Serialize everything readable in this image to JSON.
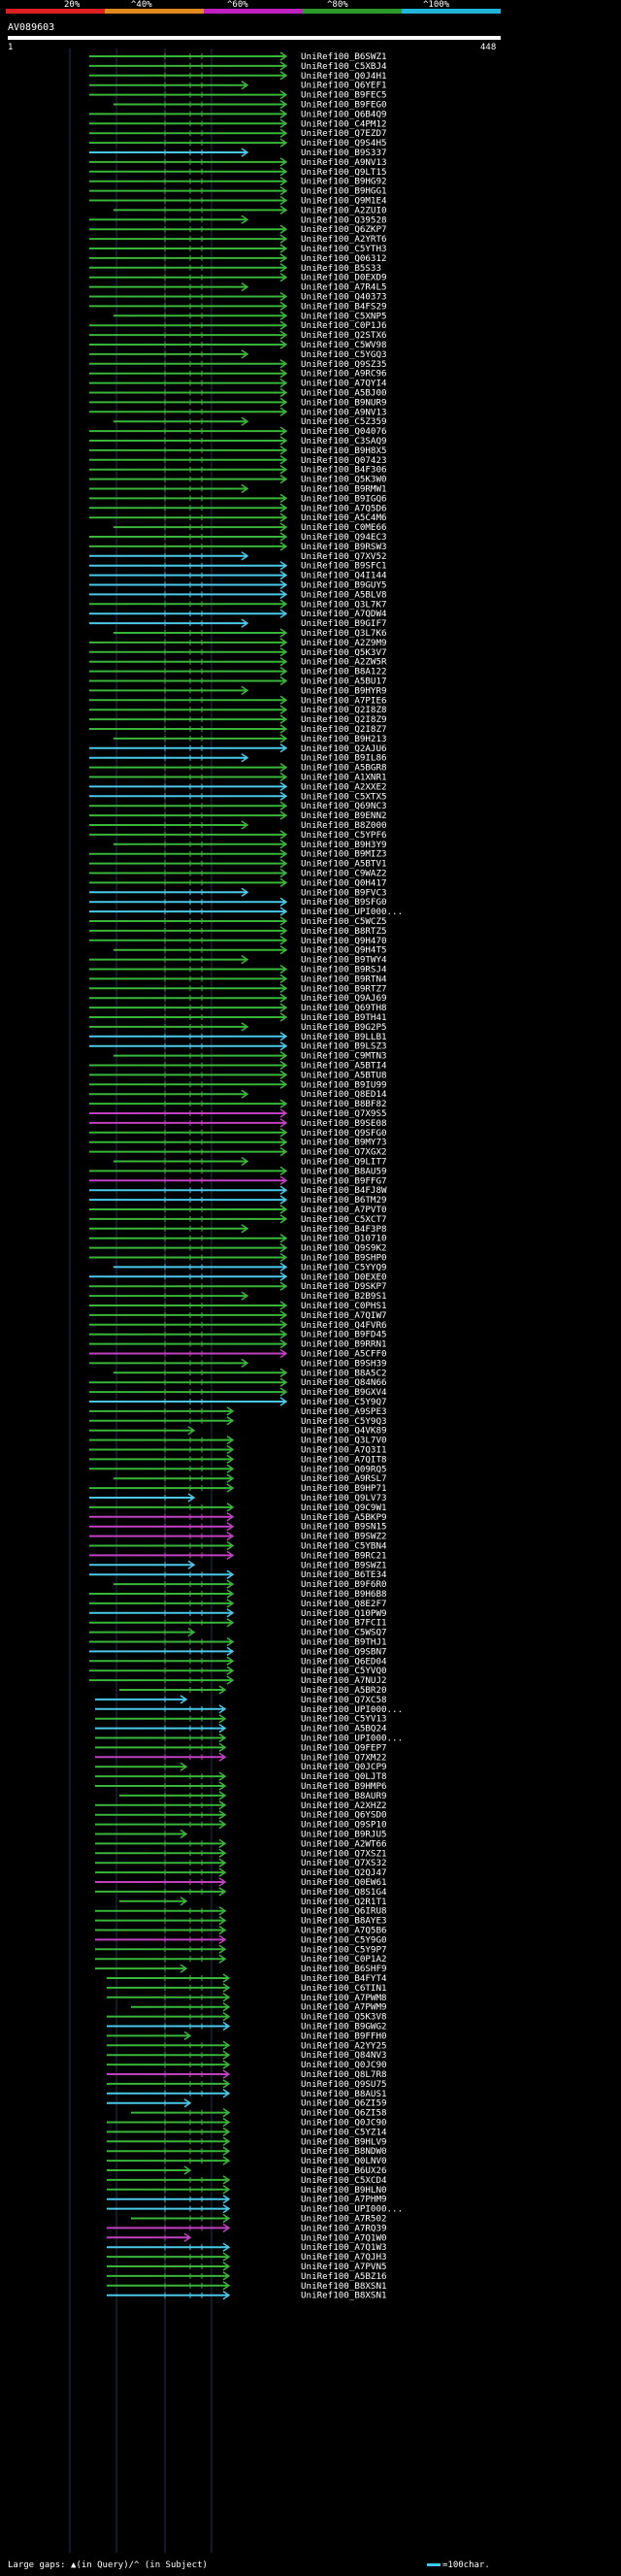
{
  "scale": {
    "ticks": [
      "20%",
      "^40%",
      "^60%",
      "^80%",
      "^100%"
    ],
    "colors": [
      "#e02020",
      "#e08a1c",
      "#c020c0",
      "#2a9a2a",
      "#20b4d8"
    ]
  },
  "query": {
    "id": "AV089603",
    "start": "1",
    "end": "448"
  },
  "colors": {
    "green": "#39b53a",
    "cyan": "#4ac8e8",
    "magenta": "#c040c0",
    "grid": "#223355"
  },
  "hits": [
    "UniRef100_B6SWZ1",
    "UniRef100_C5XBJ4",
    "UniRef100_Q0J4H1",
    "UniRef100_Q6YEF1",
    "UniRef100_B9FEC5",
    "UniRef100_B9FEG0",
    "UniRef100_Q6B4Q9",
    "UniRef100_C4PM12",
    "UniRef100_Q7EZD7",
    "UniRef100_Q9S4H5",
    "UniRef100_B9S337",
    "UniRef100_A9NV13",
    "UniRef100_Q9LT15",
    "UniRef100_B9HG92",
    "UniRef100_B9HGG1",
    "UniRef100_Q9M1E4",
    "UniRef100_A2ZUI0",
    "UniRef100_Q39528",
    "UniRef100_Q6ZKP7",
    "UniRef100_A2YRT6",
    "UniRef100_C5YTH3",
    "UniRef100_Q06312",
    "UniRef100_B5S33",
    "UniRef100_D0EXD9",
    "UniRef100_A7R4L5",
    "UniRef100_Q40373",
    "UniRef100_B4FS29",
    "UniRef100_C5XNP5",
    "UniRef100_C0P1J6",
    "UniRef100_Q2STX6",
    "UniRef100_C5WV98",
    "UniRef100_C5YGQ3",
    "UniRef100_Q9SZ35",
    "UniRef100_A9RC96",
    "UniRef100_A7QYI4",
    "UniRef100_A5BJ00",
    "UniRef100_B9NUR9",
    "UniRef100_A9NV13",
    "UniRef100_C5Z359",
    "UniRef100_Q04076",
    "UniRef100_C3SAQ9",
    "UniRef100_B9H8X5",
    "UniRef100_Q07423",
    "UniRef100_B4F306",
    "UniRef100_Q5K3W0",
    "UniRef100_B9RMW1",
    "UniRef100_B9IGQ6",
    "UniRef100_A7Q5D6",
    "UniRef100_A5C4M6",
    "UniRef100_C0ME66",
    "UniRef100_Q94EC3",
    "UniRef100_B9RSW3",
    "UniRef100_Q7XV52",
    "UniRef100_B9SFC1",
    "UniRef100_Q4I144",
    "UniRef100_B9GUY5",
    "UniRef100_A5BLV8",
    "UniRef100_Q3L7K7",
    "UniRef100_A7QDW4",
    "UniRef100_B9GIF7",
    "UniRef100_Q3L7K6",
    "UniRef100_A2Z9M9",
    "UniRef100_Q5K3V7",
    "UniRef100_A2ZW5R",
    "UniRef100_B8A122",
    "UniRef100_A5BU17",
    "UniRef100_B9HYR9",
    "UniRef100_A7PIE6",
    "UniRef100_Q2I8Z8",
    "UniRef100_Q2I8Z9",
    "UniRef100_Q2I8Z7",
    "UniRef100_B9H213",
    "UniRef100_Q2AJU6",
    "UniRef100_B9IL86",
    "UniRef100_A5BGR8",
    "UniRef100_A1XNR1",
    "UniRef100_A2XXE2",
    "UniRef100_C5XTX5",
    "UniRef100_Q69NC3",
    "UniRef100_B9ENN2",
    "UniRef100_B8Z000",
    "UniRef100_C5YPF6",
    "UniRef100_B9H3Y9",
    "UniRef100_B9MIZ3",
    "UniRef100_A5BTV1",
    "UniRef100_C9WAZ2",
    "UniRef100_Q0H417",
    "UniRef100_B9FVC3",
    "UniRef100_B9SFG0",
    "UniRef100_UPI000...",
    "UniRef100_C5WCZ5",
    "UniRef100_B8RTZ5",
    "UniRef100_Q9H470",
    "UniRef100_Q9H4T5",
    "UniRef100_B9TWY4",
    "UniRef100_B9RSJ4",
    "UniRef100_B9RTN4",
    "UniRef100_B9RTZ7",
    "UniRef100_Q9AJ69",
    "UniRef100_Q69TH8",
    "UniRef100_B9TH41",
    "UniRef100_B9G2P5",
    "UniRef100_B9LLB1",
    "UniRef100_B9LSZ3",
    "UniRef100_C9MTN3",
    "UniRef100_A5BTI4",
    "UniRef100_A5BTU8",
    "UniRef100_B9IU99",
    "UniRef100_Q8ED14",
    "UniRef100_B8BF82",
    "UniRef100_Q7X9S5",
    "UniRef100_B9SE08",
    "UniRef100_Q9SFG0",
    "UniRef100_B9MY73",
    "UniRef100_Q7XGX2",
    "UniRef100_Q9LIT7",
    "UniRef100_B8AU59",
    "UniRef100_B9FFG7",
    "UniRef100_B4FJ8W",
    "UniRef100_B6TM29",
    "UniRef100_A7PVT0",
    "UniRef100_C5XCT7",
    "UniRef100_B4F3P8",
    "UniRef100_Q10710",
    "UniRef100_Q9S9K2",
    "UniRef100_B9SHP0",
    "UniRef100_C5YYQ9",
    "UniRef100_D0EXE0",
    "UniRef100_D9SKP7",
    "UniRef100_B2B9S1",
    "UniRef100_C0PHS1",
    "UniRef100_A7QIW7",
    "UniRef100_Q4FVR6",
    "UniRef100_B9FD45",
    "UniRef100_B9RRN1",
    "UniRef100_A5CFF0",
    "UniRef100_B9SH39",
    "UniRef100_B8A5C2",
    "UniRef100_Q84N66",
    "UniRef100_B9GXV4",
    "UniRef100_C5Y9Q7",
    "UniRef100_A9SPE3",
    "UniRef100_C5Y9Q3",
    "UniRef100_Q4VK89",
    "UniRef100_Q3L7V0",
    "UniRef100_A7Q3I1",
    "UniRef100_A7QIT8",
    "UniRef100_Q09RQ5",
    "UniRef100_A9RSL7",
    "UniRef100_B9HP71",
    "UniRef100_Q9LV73",
    "UniRef100_Q9C9W1",
    "UniRef100_A5BKP9",
    "UniRef100_B9SN15",
    "UniRef100_B9SWZ2",
    "UniRef100_C5YBN4",
    "UniRef100_B9RC21",
    "UniRef100_B9SWZ1",
    "UniRef100_B6TE34",
    "UniRef100_B9F6R0",
    "UniRef100_B9H6B8",
    "UniRef100_Q8E2F7",
    "UniRef100_Q10PW9",
    "UniRef100_B7FCI1",
    "UniRef100_C5WSQ7",
    "UniRef100_B9THJ1",
    "UniRef100_Q9SBN7",
    "UniRef100_Q6ED04",
    "UniRef100_C5YVQ0",
    "UniRef100_A7NUJ2",
    "UniRef100_A5BR20",
    "UniRef100_Q7XC58",
    "UniRef100_UPI000...",
    "UniRef100_C5YV13",
    "UniRef100_A5BQ24",
    "UniRef100_UPI000...",
    "UniRef100_Q9FEP7",
    "UniRef100_Q7XM22",
    "UniRef100_Q0JCP9",
    "UniRef100_Q0LJT8",
    "UniRef100_B9HMP6",
    "UniRef100_B8AUR9",
    "UniRef100_A2XHZ2",
    "UniRef100_Q6YSD0",
    "UniRef100_Q9SP10",
    "UniRef100_B9RJU5",
    "UniRef100_A2WT66",
    "UniRef100_Q7XSZ1",
    "UniRef100_Q7XS32",
    "UniRef100_Q2QJ47",
    "UniRef100_Q0EW61",
    "UniRef100_Q8S1G4",
    "UniRef100_Q2R1T1",
    "UniRef100_Q6IRU8",
    "UniRef100_B8AYE3",
    "UniRef100_A7Q5B6",
    "UniRef100_C5Y9G0",
    "UniRef100_C5Y9P7",
    "UniRef100_C0P1A2",
    "UniRef100_B6SHF9",
    "UniRef100_B4FYT4",
    "UniRef100_C6TIN1",
    "UniRef100_A7PWM8",
    "UniRef100_A7PWM9",
    "UniRef100_Q5K3V8",
    "UniRef100_B9GWG2",
    "UniRef100_B9FFH0",
    "UniRef100_A2YY25",
    "UniRef100_Q84NV3",
    "UniRef100_Q0JC90",
    "UniRef100_Q8L7R8",
    "UniRef100_Q9SU75",
    "UniRef100_B8AUS1",
    "UniRef100_Q6ZI59",
    "UniRef100_Q6ZI58",
    "UniRef100_Q0JC90",
    "UniRef100_C5YZ14",
    "UniRef100_B9HLV9",
    "UniRef100_B8NDW0",
    "UniRef100_Q0LNV0",
    "UniRef100_B6UX26",
    "UniRef100_C5XCD4",
    "UniRef100_B9HLN0",
    "UniRef100_A7PHM9",
    "UniRef100_UPI000...",
    "UniRef100_A7R502",
    "UniRef100_A7RQ39",
    "UniRef100_A7Q1W0",
    "UniRef100_A7Q1W3",
    "UniRef100_A7QJH3",
    "UniRef100_A7PVN5",
    "UniRef100_A5BZ16",
    "UniRef100_B8XSN1",
    "UniRef100_B8XSN1"
  ],
  "legend": {
    "gaps": "Large gaps: ▲(in Query)/^ (in Subject)",
    "scale": "=100char."
  }
}
